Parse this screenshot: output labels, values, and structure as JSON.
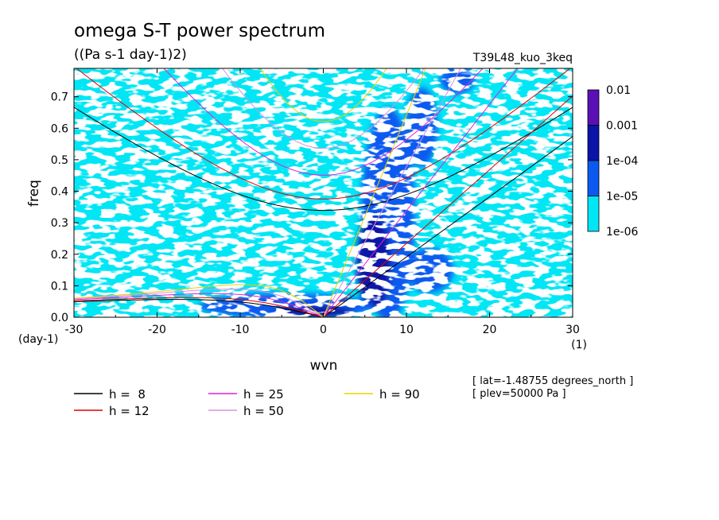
{
  "chart_data": {
    "type": "heatmap",
    "title": "omega S-T power spectrum",
    "subtitle": "((Pa s-1 day-1)2)",
    "run_label": "T39L48_kuo_3keq",
    "xlabel": "wvn",
    "ylabel": "freq",
    "x_unit": "(1)",
    "y_unit": "(day-1)",
    "xlim": [
      -30,
      30
    ],
    "ylim": [
      0,
      0.79
    ],
    "x_ticks": [
      "-30",
      "-20",
      "-10",
      "0",
      "10",
      "20",
      "30"
    ],
    "x_tick_values": [
      -30,
      -20,
      -10,
      0,
      10,
      20,
      30
    ],
    "y_ticks": [
      "0.0",
      "0.1",
      "0.2",
      "0.3",
      "0.4",
      "0.5",
      "0.6",
      "0.7"
    ],
    "y_tick_values": [
      0,
      0.1,
      0.2,
      0.3,
      0.4,
      0.5,
      0.6,
      0.7
    ],
    "colorbar": {
      "labels": [
        "0.01",
        "0.001",
        "1e-04",
        "1e-05",
        "1e-06"
      ],
      "levels": [
        0.01,
        0.001,
        0.0001,
        1e-05,
        1e-06
      ],
      "colors": [
        "#5a10b4",
        "#0a14a8",
        "#0a5af0",
        "#00e6f5"
      ]
    },
    "dispersion_curves": [
      {
        "label": "h =  8",
        "h": 8,
        "color": "#000000"
      },
      {
        "label": "h = 12",
        "h": 12,
        "color": "#e00000"
      },
      {
        "label": "h = 25",
        "h": 25,
        "color": "#e020d0"
      },
      {
        "label": "h = 50",
        "h": 50,
        "color": "#d890e0"
      },
      {
        "label": "h = 90",
        "h": 90,
        "color": "#f0d000"
      }
    ],
    "info": [
      "[ lat=-1.48755 degrees_north ]",
      "[ plev=50000 Pa ]"
    ]
  }
}
